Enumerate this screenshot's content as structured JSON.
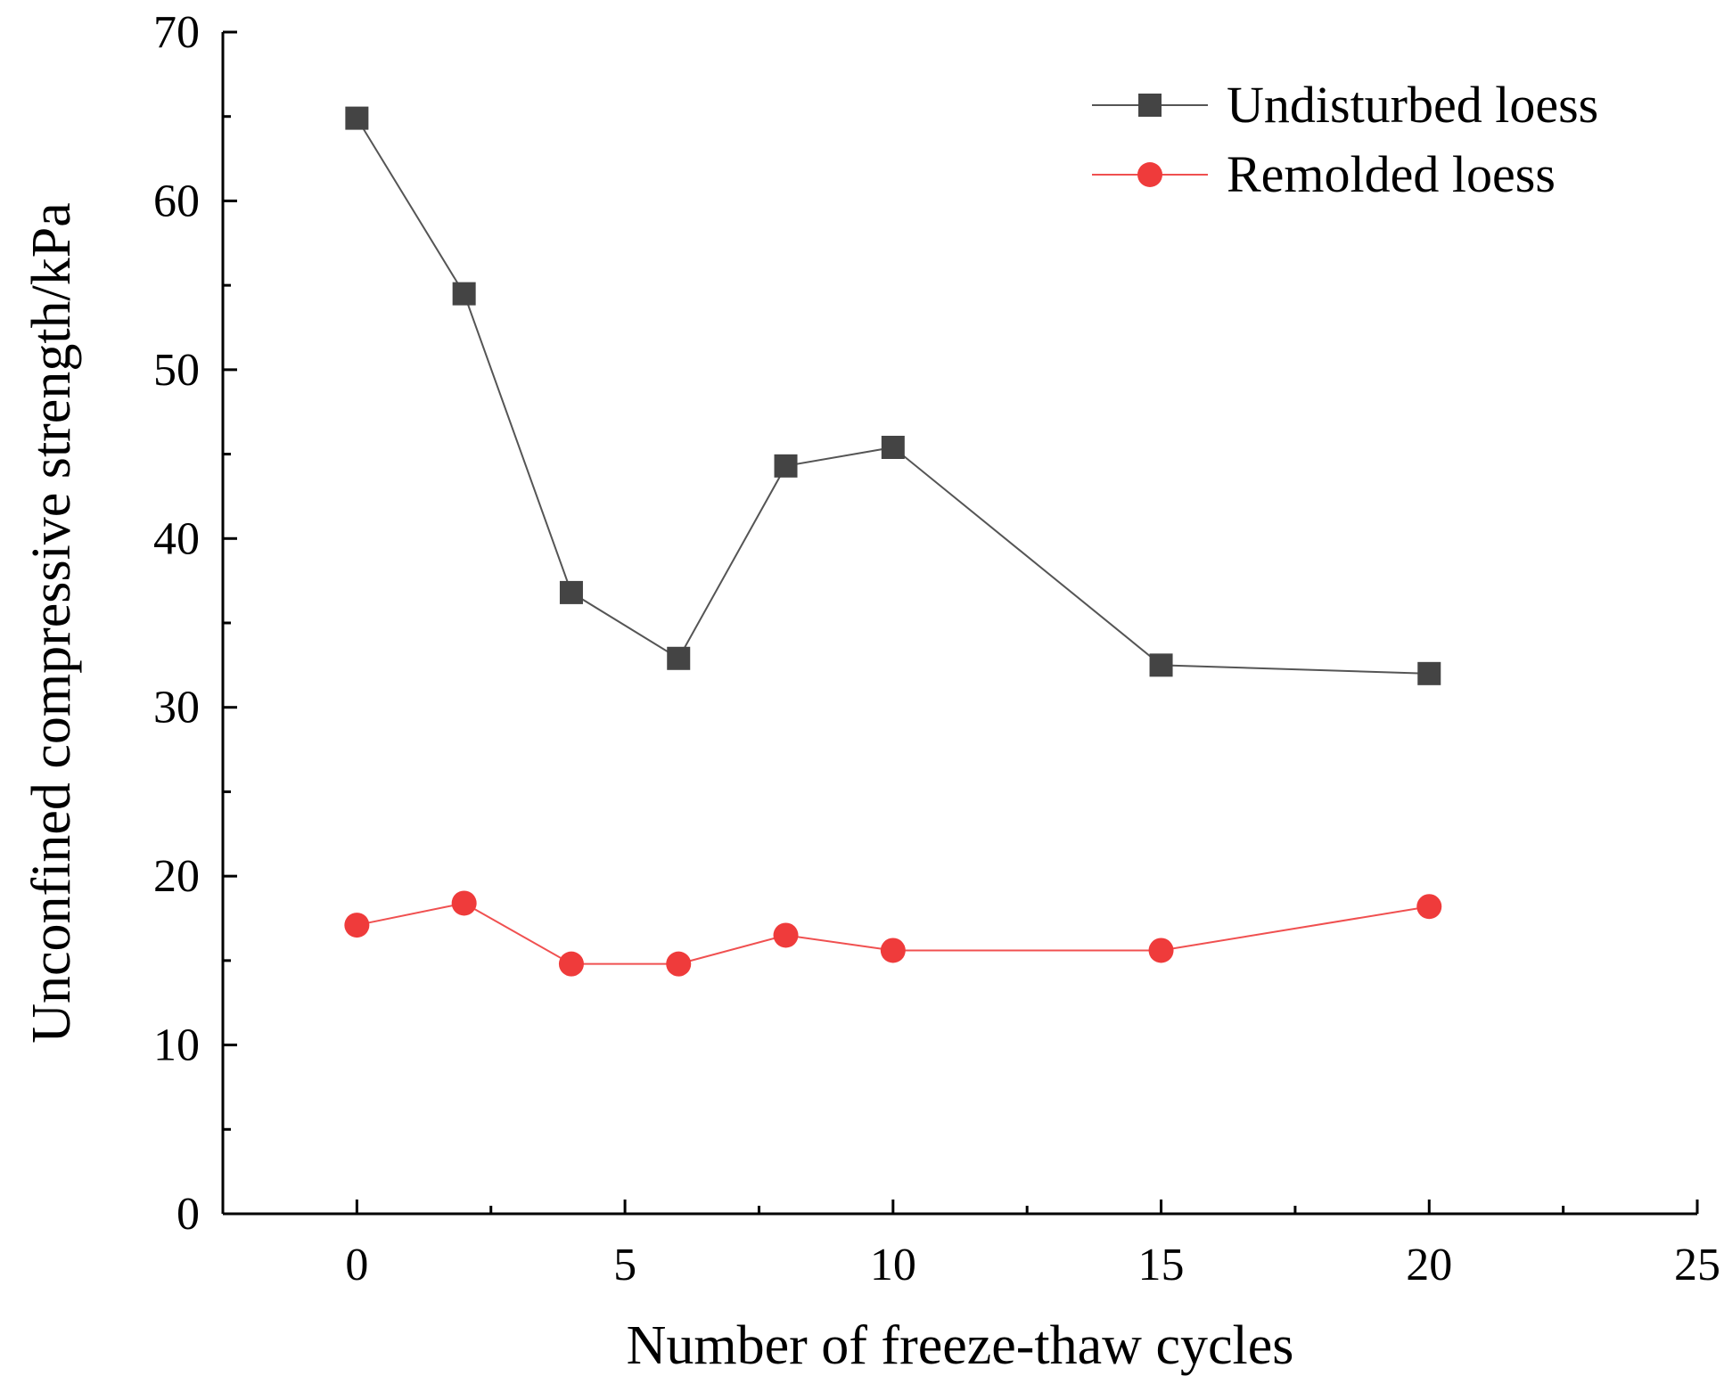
{
  "chart_data": {
    "type": "line",
    "title": "",
    "xlabel": "Number of freeze-thaw cycles",
    "ylabel": "Unconfined compressive strength/kPa",
    "xlim": [
      -2.5,
      25
    ],
    "ylim": [
      0,
      70
    ],
    "xticks": [
      0,
      5,
      10,
      15,
      20,
      25
    ],
    "yticks": [
      0,
      10,
      20,
      30,
      40,
      50,
      60,
      70
    ],
    "grid": false,
    "legend_position": "top-right",
    "x": [
      0,
      2,
      4,
      6,
      8,
      10,
      15,
      20
    ],
    "series": [
      {
        "name": "Undisturbed loess",
        "marker": "square",
        "color": "#444444",
        "line_color": "#555555",
        "values": [
          64.9,
          54.5,
          36.8,
          32.9,
          44.3,
          45.4,
          32.5,
          32.0
        ]
      },
      {
        "name": "Remolded loess",
        "marker": "circle",
        "color": "#ef3b3b",
        "line_color": "#f05050",
        "values": [
          17.1,
          18.4,
          14.8,
          14.8,
          16.5,
          15.6,
          15.6,
          18.2
        ]
      }
    ]
  }
}
